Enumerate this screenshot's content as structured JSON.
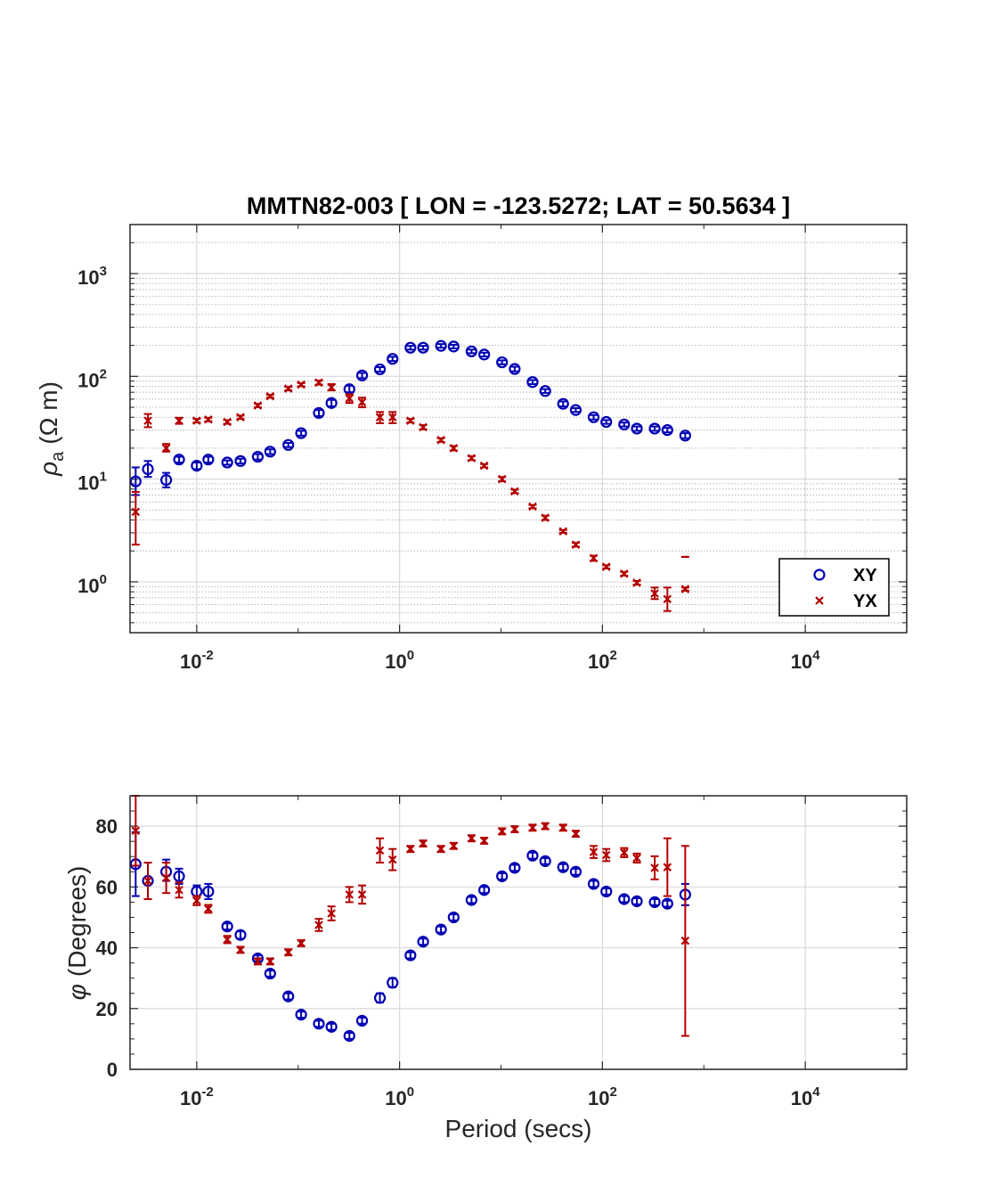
{
  "chart_data": [
    {
      "type": "scatter",
      "title": "MMTN82-003 [ LON = -123.5272; LAT = 50.5634 ]",
      "ylabel_symbol": "ρ",
      "ylabel_sub": "a",
      "ylabel_unit": "(Ω m)",
      "xlabel": "",
      "x_scale": "log",
      "y_scale": "log",
      "xlim": [
        0.0022,
        100000
      ],
      "ylim": [
        0.32,
        3000
      ],
      "x_ticks": [
        {
          "value": 0.01,
          "base": "10",
          "exp": "-2"
        },
        {
          "value": 1,
          "base": "10",
          "exp": "0"
        },
        {
          "value": 100,
          "base": "10",
          "exp": "2"
        },
        {
          "value": 10000,
          "base": "10",
          "exp": "4"
        }
      ],
      "y_ticks": [
        {
          "value": 1,
          "base": "10",
          "exp": "0"
        },
        {
          "value": 10,
          "base": "10",
          "exp": "1"
        },
        {
          "value": 100,
          "base": "10",
          "exp": "2"
        },
        {
          "value": 1000,
          "base": "10",
          "exp": "3"
        }
      ],
      "grid": true,
      "legend_position": "bottom-right",
      "series": [
        {
          "name": "XY",
          "marker": "circle",
          "color": "#0000b3",
          "x": [
            0.0025,
            0.0033,
            0.005,
            0.0067,
            0.01,
            0.013,
            0.02,
            0.027,
            0.04,
            0.053,
            0.08,
            0.107,
            0.16,
            0.213,
            0.32,
            0.427,
            0.64,
            0.853,
            1.28,
            1.707,
            2.56,
            3.413,
            5.12,
            6.827,
            10.24,
            13.65,
            20.48,
            27.31,
            40.96,
            54.61,
            81.92,
            109.2,
            163.8,
            218.5,
            327.7,
            436.9,
            655.4
          ],
          "y": [
            9.5,
            12.5,
            9.8,
            15.5,
            13.5,
            15.5,
            14.5,
            15,
            16.5,
            18.5,
            21.5,
            28,
            44,
            55,
            75,
            102,
            117,
            148,
            190,
            190,
            198,
            195,
            175,
            163,
            137,
            118,
            88,
            72,
            54,
            47,
            40,
            36,
            34,
            31,
            31,
            30,
            26.5
          ],
          "y_err_low": [
            7,
            10.5,
            8.3,
            14.5,
            12.5,
            14.5,
            13.8,
            14.2,
            15.5,
            17.5,
            20.5,
            26.5,
            41,
            51,
            70,
            96,
            111,
            141,
            182,
            182,
            190,
            187,
            168,
            156,
            131,
            112,
            84,
            69,
            51,
            45,
            38,
            34.5,
            32.5,
            29.5,
            29.5,
            28.5,
            25
          ],
          "y_err_high": [
            13,
            15,
            11.5,
            16.5,
            14.5,
            16.5,
            15.2,
            15.8,
            17.5,
            19.5,
            22.5,
            29.5,
            47,
            59,
            81,
            108,
            123,
            155,
            198,
            198,
            206,
            203,
            182,
            170,
            143,
            124,
            92,
            75,
            57,
            49,
            42,
            37.5,
            35.5,
            32.5,
            32.5,
            31.5,
            28
          ]
        },
        {
          "name": "YX",
          "marker": "x",
          "color": "#b30000",
          "x": [
            0.0025,
            0.0033,
            0.005,
            0.0067,
            0.01,
            0.013,
            0.02,
            0.027,
            0.04,
            0.053,
            0.08,
            0.107,
            0.16,
            0.213,
            0.32,
            0.427,
            0.64,
            0.853,
            1.28,
            1.707,
            2.56,
            3.413,
            5.12,
            6.827,
            10.24,
            13.65,
            20.48,
            27.31,
            40.96,
            54.61,
            81.92,
            109.2,
            163.8,
            218.5,
            327.7,
            436.9,
            655.4
          ],
          "y": [
            4.8,
            37,
            20,
            37,
            37,
            38,
            36,
            40,
            52,
            64,
            76,
            83,
            87,
            78,
            61,
            56,
            40,
            40,
            37,
            32,
            24,
            20,
            16,
            13.5,
            10,
            7.6,
            5.4,
            4.2,
            3.1,
            2.3,
            1.7,
            1.4,
            1.2,
            0.98,
            0.77,
            0.68,
            0.85
          ],
          "y_err_low": [
            2.3,
            32,
            18.5,
            34.5,
            35.5,
            36.5,
            34.5,
            38.5,
            50,
            62,
            73,
            80,
            83,
            73,
            55,
            50,
            35,
            35,
            35.5,
            30.5,
            23,
            19,
            15.3,
            13,
            9.5,
            7.3,
            5.2,
            4,
            3,
            2.2,
            1.6,
            1.35,
            1.15,
            0.94,
            0.68,
            0.52,
            0.82
          ],
          "y_err_high": [
            7.5,
            43,
            22,
            39.5,
            38.5,
            39.5,
            37.5,
            41.5,
            54,
            66,
            79,
            86,
            91,
            84,
            67,
            62,
            45,
            45,
            38.5,
            33.5,
            25,
            21,
            16.7,
            14,
            10.5,
            7.9,
            5.6,
            4.4,
            3.2,
            2.4,
            1.8,
            1.45,
            1.25,
            1.02,
            0.88,
            0.88,
            0.88
          ]
        }
      ],
      "lone_marks": [
        {
          "series": "YX",
          "x": 655.4,
          "y": 1.75
        }
      ]
    },
    {
      "type": "scatter",
      "title": "",
      "ylabel_symbol": "φ",
      "ylabel_unit": "(Degrees)",
      "xlabel": "Period (secs)",
      "x_scale": "log",
      "y_scale": "linear",
      "xlim": [
        0.0022,
        100000
      ],
      "ylim": [
        0,
        90
      ],
      "x_ticks": [
        {
          "value": 0.01,
          "base": "10",
          "exp": "-2"
        },
        {
          "value": 1,
          "base": "10",
          "exp": "0"
        },
        {
          "value": 100,
          "base": "10",
          "exp": "2"
        },
        {
          "value": 10000,
          "base": "10",
          "exp": "4"
        }
      ],
      "y_ticks": [
        {
          "value": 0,
          "label": "0"
        },
        {
          "value": 20,
          "label": "20"
        },
        {
          "value": 40,
          "label": "40"
        },
        {
          "value": 60,
          "label": "60"
        },
        {
          "value": 80,
          "label": "80"
        }
      ],
      "grid": true,
      "series": [
        {
          "name": "XY",
          "marker": "circle",
          "color": "#0000b3",
          "x": [
            0.0025,
            0.0033,
            0.005,
            0.0067,
            0.01,
            0.013,
            0.02,
            0.027,
            0.04,
            0.053,
            0.08,
            0.107,
            0.16,
            0.213,
            0.32,
            0.427,
            0.64,
            0.853,
            1.28,
            1.707,
            2.56,
            3.413,
            5.12,
            6.827,
            10.24,
            13.65,
            20.48,
            27.31,
            40.96,
            54.61,
            81.92,
            109.2,
            163.8,
            218.5,
            327.7,
            436.9,
            655.4
          ],
          "y": [
            67.5,
            62,
            65,
            63.5,
            58.5,
            58.5,
            47,
            44.2,
            36.5,
            31.5,
            24,
            18,
            15,
            14,
            11,
            16,
            23.5,
            28.5,
            37.5,
            42,
            46,
            50,
            55.7,
            59,
            63.5,
            66.3,
            70.3,
            68.5,
            66.5,
            65,
            61,
            58.5,
            56,
            55.3,
            55,
            54.5,
            57.5
          ],
          "y_err_low": [
            57,
            56,
            62,
            61,
            57,
            56,
            46,
            43,
            35.5,
            30.5,
            23,
            17,
            14,
            13,
            10,
            15,
            22,
            27,
            36.5,
            41,
            45,
            49,
            54.7,
            58,
            62.5,
            65.3,
            69.3,
            67.5,
            65.5,
            64,
            60,
            57.5,
            55,
            54.3,
            54,
            53.5,
            54
          ],
          "y_err_high": [
            78,
            68,
            69,
            66,
            60.5,
            61,
            48,
            45.4,
            37.5,
            32.5,
            25,
            19,
            16,
            15,
            12,
            17,
            25,
            30,
            38.5,
            43,
            47,
            51,
            56.7,
            60,
            64.5,
            67.3,
            71.3,
            69.5,
            67.5,
            66,
            62,
            59.5,
            57,
            56.3,
            56,
            55.5,
            61
          ]
        },
        {
          "name": "YX",
          "marker": "x",
          "color": "#b30000",
          "x": [
            0.0025,
            0.0033,
            0.005,
            0.0067,
            0.01,
            0.013,
            0.02,
            0.027,
            0.04,
            0.053,
            0.08,
            0.107,
            0.16,
            0.213,
            0.32,
            0.427,
            0.64,
            0.853,
            1.28,
            1.707,
            2.56,
            3.413,
            5.12,
            6.827,
            10.24,
            13.65,
            20.48,
            27.31,
            40.96,
            54.61,
            81.92,
            109.2,
            163.8,
            218.5,
            327.7,
            436.9,
            655.4
          ],
          "y": [
            78.5,
            62,
            63,
            59,
            55.5,
            52.8,
            42.7,
            39.3,
            35.5,
            35.5,
            38.5,
            41.5,
            47.5,
            51.3,
            57.5,
            57.5,
            72,
            69,
            72.5,
            74.3,
            72.5,
            73.5,
            76,
            75.2,
            78.3,
            79,
            79.5,
            80,
            79.5,
            77.5,
            71.5,
            70.5,
            71.3,
            69.5,
            66.3,
            66.5,
            42.3
          ],
          "y_err_low": [
            67,
            56,
            58,
            56.5,
            54,
            51.5,
            41.5,
            38.3,
            34.5,
            34.5,
            37.5,
            40.5,
            45.5,
            49,
            55,
            54.5,
            68,
            65.5,
            71.5,
            73.3,
            71.5,
            72.5,
            75,
            74.2,
            77.3,
            78,
            78.5,
            79,
            78.5,
            76.5,
            69.5,
            68.5,
            69.8,
            68,
            62.5,
            57,
            11
          ],
          "y_err_high": [
            90,
            68,
            68,
            61.5,
            57,
            54.1,
            43.9,
            40.3,
            36.5,
            36.5,
            39.5,
            42.5,
            49.5,
            53.6,
            60,
            60.5,
            76,
            72.5,
            73.5,
            75.3,
            73.5,
            74.5,
            77,
            76.2,
            79.3,
            80,
            80.5,
            81,
            80.5,
            78.5,
            73.5,
            72.5,
            72.8,
            71,
            70.1,
            76,
            73.5
          ]
        }
      ]
    }
  ]
}
